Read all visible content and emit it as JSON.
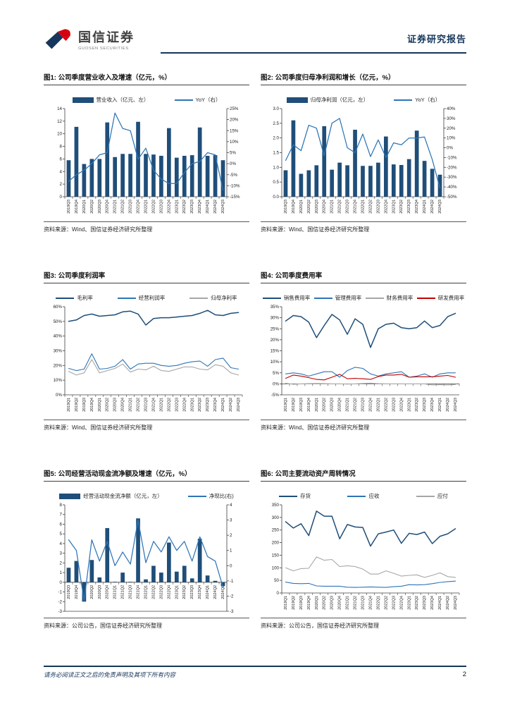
{
  "header": {
    "brand_cn": "国信证券",
    "brand_en": "GUOSEN SECURITIES",
    "report_type": "证券研究报告"
  },
  "footer": {
    "disclaimer": "请务必阅读正文之后的免责声明及其项下所有内容",
    "page_number": "2"
  },
  "colors": {
    "brand_navy": "#16365c",
    "bar_blue": "#1f4e79",
    "line_blue": "#2e75b6",
    "line_gray": "#a6a6a6",
    "line_red": "#c00000"
  },
  "panels": [
    {
      "title": "图1: 公司季度营业收入及增速（亿元，%）",
      "source": "资料来源：Wind、国信证券经济研究所整理"
    },
    {
      "title": "图2: 公司季度归母净利润和增长（亿元，%）",
      "source": "资料来源：Wind、国信证券经济研究所整理"
    },
    {
      "title": "图3: 公司季度利润率",
      "source": "资料来源：Wind、国信证券经济研究所整理"
    },
    {
      "title": "图4: 公司季度费用率",
      "source": "资料来源：Wind、国信证券经济研究所整理"
    },
    {
      "title": "图5: 公司经营活动现金流净额及增速（亿元，%）",
      "source": "资料来源：公司公告，国信证券经济研究所整理"
    },
    {
      "title": "图6: 公司主要流动资产周转情况",
      "source": "资料来源：公司公告，国信证券经济研究所整理"
    }
  ],
  "chart_data": [
    {
      "type": "bar",
      "subtype": "combo",
      "title": "公司季度营业收入及增速（亿元，%）",
      "categories": [
        "2019Q3",
        "2019Q4",
        "2020Q1",
        "2020Q2",
        "2020Q3",
        "2020Q4",
        "2021Q1",
        "2021Q2",
        "2021Q3",
        "2021Q4",
        "2022Q1",
        "2022Q2",
        "2022Q3",
        "2022Q4",
        "2023Q1",
        "2023Q2",
        "2023Q3",
        "2023Q4",
        "2024Q1",
        "2024Q2",
        "2024Q3"
      ],
      "bar_series": {
        "name": "营业收入（亿元、左）",
        "color": "#1f4e79",
        "values": [
          5.8,
          11.1,
          5.2,
          6.0,
          6.0,
          11.8,
          6.3,
          6.8,
          6.8,
          11.9,
          6.8,
          6.7,
          6.5,
          10.9,
          6.2,
          6.5,
          6.6,
          11.0,
          6.5,
          6.6,
          5.8
        ]
      },
      "line_series": [
        {
          "name": "YoY（右）",
          "color": "#2e75b6",
          "axis": "right",
          "values": [
            -8,
            -5,
            -3,
            0,
            4,
            5,
            23,
            16,
            15,
            2,
            7,
            -3,
            -7,
            -9,
            -9,
            -4,
            0,
            1,
            5,
            4,
            -12
          ]
        }
      ],
      "left_axis": {
        "min": 0,
        "max": 14,
        "step": 2,
        "format": "int"
      },
      "right_axis": {
        "min": -15,
        "max": 25,
        "step": 5,
        "format": "pct"
      }
    },
    {
      "type": "bar",
      "subtype": "combo",
      "title": "公司季度归母净利润和增长（亿元，%）",
      "categories": [
        "2019Q3",
        "2019Q4",
        "2020Q1",
        "2020Q2",
        "2020Q3",
        "2020Q4",
        "2021Q1",
        "2021Q2",
        "2021Q3",
        "2021Q4",
        "2022Q1",
        "2022Q2",
        "2022Q3",
        "2022Q4",
        "2023Q1",
        "2023Q2",
        "2023Q3",
        "2023Q4",
        "2024Q1",
        "2024Q2",
        "2024Q3"
      ],
      "bar_series": {
        "name": "归母净利润（亿元，左）",
        "color": "#1f4e79",
        "values": [
          0.9,
          2.6,
          0.78,
          0.9,
          1.07,
          2.4,
          0.92,
          1.16,
          1.07,
          2.28,
          1.05,
          1.05,
          1.16,
          2.05,
          1.1,
          1.08,
          1.28,
          2.25,
          1.22,
          0.95,
          0.75
        ]
      },
      "line_series": [
        {
          "name": "YoY（右）",
          "color": "#2e75b6",
          "axis": "right",
          "values": [
            -13,
            3,
            -3,
            23,
            20,
            -8,
            25,
            30,
            0,
            -5,
            14,
            -9,
            8,
            -10,
            5,
            3,
            10,
            10,
            11,
            -12,
            -41
          ]
        }
      ],
      "left_axis": {
        "min": 0,
        "max": 3,
        "step": 0.5,
        "format": "dec1"
      },
      "right_axis": {
        "min": -50,
        "max": 40,
        "step": 10,
        "format": "pct"
      }
    },
    {
      "type": "line",
      "title": "公司季度利润率",
      "categories": [
        "2019Q1",
        "2019Q2",
        "2019Q3",
        "2019Q4",
        "2020Q1",
        "2020Q2",
        "2020Q3",
        "2020Q4",
        "2021Q1",
        "2021Q2",
        "2021Q3",
        "2021Q4",
        "2022Q1",
        "2022Q2",
        "2022Q3",
        "2022Q4",
        "2023Q1",
        "2023Q2",
        "2023Q3",
        "2023Q4",
        "2024Q1",
        "2024Q2",
        "2024Q3"
      ],
      "line_series": [
        {
          "name": "毛利率",
          "color": "#1f4e79",
          "values": [
            50,
            51,
            54,
            55,
            53.5,
            54,
            54.5,
            56.5,
            57,
            55,
            47.5,
            52,
            52.5,
            52.5,
            53,
            53.5,
            54,
            55.5,
            57.5,
            54.5,
            54,
            55.5,
            56
          ]
        },
        {
          "name": "经营利润率",
          "color": "#2e75b6",
          "values": [
            18,
            16.5,
            17.5,
            28,
            17.5,
            18,
            19.5,
            24,
            17.5,
            21,
            21.5,
            21.5,
            20,
            19.5,
            20,
            21.5,
            22.5,
            23,
            19.5,
            24,
            25,
            18.5,
            17.5
          ]
        },
        {
          "name": "归母净利率",
          "color": "#a6a6a6",
          "values": [
            16,
            13.5,
            15,
            24,
            15,
            16.5,
            18,
            21,
            15.5,
            17.5,
            17,
            19.5,
            16.5,
            16,
            17.5,
            19,
            19,
            17.5,
            17,
            20.5,
            19.5,
            15,
            13.5
          ]
        }
      ],
      "left_axis": {
        "min": 0,
        "max": 60,
        "step": 10,
        "format": "pct"
      }
    },
    {
      "type": "line",
      "title": "公司季度费用率",
      "categories": [
        "2019Q1",
        "2019Q2",
        "2019Q3",
        "2019Q4",
        "2020Q1",
        "2020Q2",
        "2020Q3",
        "2020Q4",
        "2021Q1",
        "2021Q2",
        "2021Q3",
        "2021Q4",
        "2022Q1",
        "2022Q2",
        "2022Q3",
        "2022Q4",
        "2023Q1",
        "2023Q2",
        "2023Q3",
        "2023Q4",
        "2024Q1",
        "2024Q2",
        "2024Q3"
      ],
      "line_series": [
        {
          "name": "销售费用率",
          "color": "#1f4e79",
          "values": [
            28.5,
            31,
            30.5,
            28,
            21,
            26.5,
            31.5,
            29,
            22.5,
            29.5,
            27,
            16.5,
            25,
            27,
            27.5,
            25.5,
            25,
            25.5,
            28.5,
            25.5,
            26.5,
            30.5,
            32
          ]
        },
        {
          "name": "管理费用率",
          "color": "#2e75b6",
          "values": [
            4.5,
            5,
            4.5,
            3.5,
            4.5,
            5.5,
            5.5,
            3,
            6,
            7.5,
            7,
            4.5,
            3.5,
            4.5,
            5,
            5.5,
            3,
            3.5,
            4.5,
            3,
            4.5,
            5,
            5
          ]
        },
        {
          "name": "财务费用率",
          "color": "#a6a6a6",
          "values": [
            0.3,
            -0.2,
            0,
            0.1,
            0.2,
            0.1,
            0,
            0,
            -0.1,
            0,
            0.2,
            0.3,
            0.1,
            0,
            0,
            0,
            0,
            0,
            0,
            -0.5,
            -0.4,
            -0.5,
            -0.3
          ]
        },
        {
          "name": "研发费用率",
          "color": "#c00000",
          "values": [
            2.5,
            4,
            3.5,
            2.8,
            2,
            1.8,
            3,
            4.3,
            2.3,
            2.5,
            2.3,
            2,
            3.3,
            4,
            4,
            4.3,
            3,
            3.2,
            3.2,
            3.2,
            3.5,
            3.8,
            3
          ]
        }
      ],
      "left_axis": {
        "min": -5,
        "max": 35,
        "step": 5,
        "format": "pct"
      }
    },
    {
      "type": "bar",
      "subtype": "combo",
      "title": "公司经营活动现金流净额及增速（亿元，%）",
      "labels_at_zero": true,
      "categories": [
        "2019Q3",
        "2019Q4",
        "2020Q1",
        "2020Q2",
        "2020Q3",
        "2020Q4",
        "2021Q1",
        "2021Q2",
        "2021Q3",
        "2021Q4",
        "2022Q1",
        "2022Q2",
        "2022Q3",
        "2022Q4",
        "2023Q1",
        "2023Q2",
        "2023Q3",
        "2023Q4",
        "2024Q1",
        "2024Q2",
        "2024Q3"
      ],
      "bar_series": {
        "name": "经营活动现金流净额（亿元，左）",
        "color": "#1f4e79",
        "values": [
          1.5,
          2.2,
          -2.0,
          2.3,
          0.5,
          5.6,
          0.05,
          1.0,
          0.05,
          6.6,
          0.3,
          1.7,
          1.0,
          4.1,
          1.1,
          1.7,
          0.4,
          4.5,
          0.7,
          0.15,
          -0.4
        ]
      },
      "line_series": [
        {
          "name": "净现比(右)",
          "color": "#2e75b6",
          "axis": "right",
          "values": [
            1.7,
            1.0,
            -2.3,
            1.7,
            0.3,
            1.6,
            0.0,
            0.9,
            0.1,
            3.0,
            0.2,
            1.6,
            0.9,
            1.9,
            1.0,
            1.6,
            0.3,
            1.9,
            0.6,
            0.3,
            -1.4
          ]
        }
      ],
      "left_axis": {
        "min": -3,
        "max": 8,
        "step": 1,
        "format": "int"
      },
      "right_axis": {
        "min": -3,
        "max": 4,
        "step": 1,
        "format": "int"
      }
    },
    {
      "type": "line",
      "title": "公司主要流动资产周转情况",
      "categories": [
        "2019Q1",
        "2019Q2",
        "2019Q3",
        "2019Q4",
        "2020Q1",
        "2020Q2",
        "2020Q3",
        "2020Q4",
        "2021Q1",
        "2021Q2",
        "2021Q3",
        "2021Q4",
        "2022Q1",
        "2022Q2",
        "2022Q3",
        "2022Q4",
        "2023Q1",
        "2023Q2",
        "2023Q3",
        "2023Q4",
        "2024Q1",
        "2024Q2",
        "2024Q3"
      ],
      "line_series": [
        {
          "name": "存货",
          "color": "#1f4e79",
          "values": [
            283,
            258,
            275,
            228,
            325,
            305,
            305,
            215,
            272,
            262,
            260,
            186,
            235,
            242,
            250,
            197,
            237,
            232,
            242,
            196,
            225,
            235,
            255
          ]
        },
        {
          "name": "应收",
          "color": "#2e75b6",
          "values": [
            43,
            38,
            37,
            38,
            28,
            27,
            27,
            27,
            23,
            22,
            23,
            24,
            23,
            22,
            25,
            27,
            33,
            32,
            33,
            37,
            42,
            45,
            47
          ]
        },
        {
          "name": "应付",
          "color": "#a6a6a6",
          "values": [
            100,
            88,
            97,
            98,
            143,
            130,
            133,
            105,
            108,
            105,
            95,
            75,
            75,
            88,
            78,
            67,
            70,
            72,
            62,
            70,
            80,
            65,
            62
          ]
        }
      ],
      "left_axis": {
        "min": 0,
        "max": 350,
        "step": 50,
        "format": "int"
      }
    }
  ]
}
